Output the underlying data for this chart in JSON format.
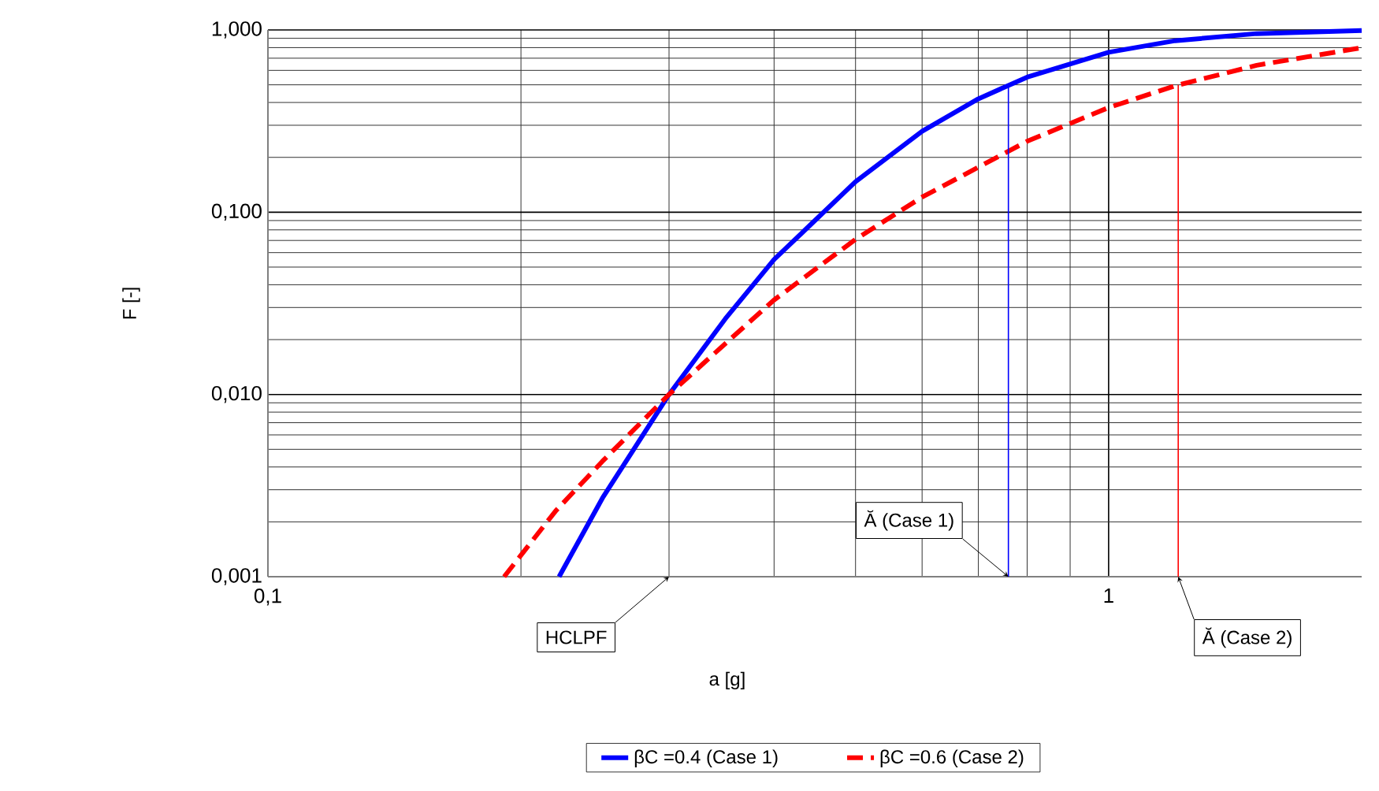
{
  "chart_data": {
    "type": "line",
    "xlabel": "a [g]",
    "ylabel": "F [-]",
    "log": "xy",
    "grid": true,
    "legend": "bottom",
    "marker": "none",
    "xlim": [
      0.1,
      2
    ],
    "ylim": [
      0.001,
      1
    ],
    "xticks": [
      {
        "value": 0.1,
        "label": "0,1"
      },
      1
    ],
    "yticks": [
      {
        "value": 0.001,
        "label": "0,001"
      },
      {
        "value": 0.01,
        "label": "0,010"
      },
      {
        "value": 0.1,
        "label": "0,100"
      },
      {
        "value": 1,
        "label": "1,000"
      }
    ],
    "series": [
      {
        "name": "βC =0.4 (Case 1)",
        "color": "#0000ff",
        "line_style": "solid",
        "x": [
          0.222,
          0.25,
          0.3,
          0.35,
          0.4,
          0.5,
          0.6,
          0.7,
          0.8,
          1.0,
          1.2,
          1.5,
          2.0
        ],
        "values": [
          0.001,
          0.0027,
          0.01,
          0.026,
          0.055,
          0.147,
          0.278,
          0.419,
          0.551,
          0.754,
          0.873,
          0.955,
          0.992
        ]
      },
      {
        "name": "βC =0.6 (Case 2)",
        "color": "#ff0000",
        "line_style": "dashed",
        "x": [
          0.191,
          0.22,
          0.25,
          0.3,
          0.35,
          0.4,
          0.5,
          0.6,
          0.8,
          1.0,
          1.2,
          1.5,
          2.0
        ],
        "values": [
          0.001,
          0.0023,
          0.0043,
          0.01,
          0.019,
          0.033,
          0.071,
          0.121,
          0.245,
          0.375,
          0.494,
          0.64,
          0.799
        ]
      },
      {
        "color": "#0000ff",
        "line_style": "solid",
        "x": [
          0.76,
          0.76
        ],
        "values": [
          0.001,
          0.5
        ]
      },
      {
        "color": "#ff0000",
        "line_style": "solid",
        "x": [
          1.21,
          1.21
        ],
        "values": [
          0.001,
          0.5
        ]
      }
    ],
    "annotations": [
      {
        "text": "HCLPF",
        "x": 0.3,
        "y": 0.001
      },
      {
        "text": "Ă (Case 1)",
        "x": 0.76,
        "y": 0.001
      },
      {
        "text": "Ă (Case 2)",
        "x": 1.21,
        "y": 0.001
      }
    ]
  }
}
